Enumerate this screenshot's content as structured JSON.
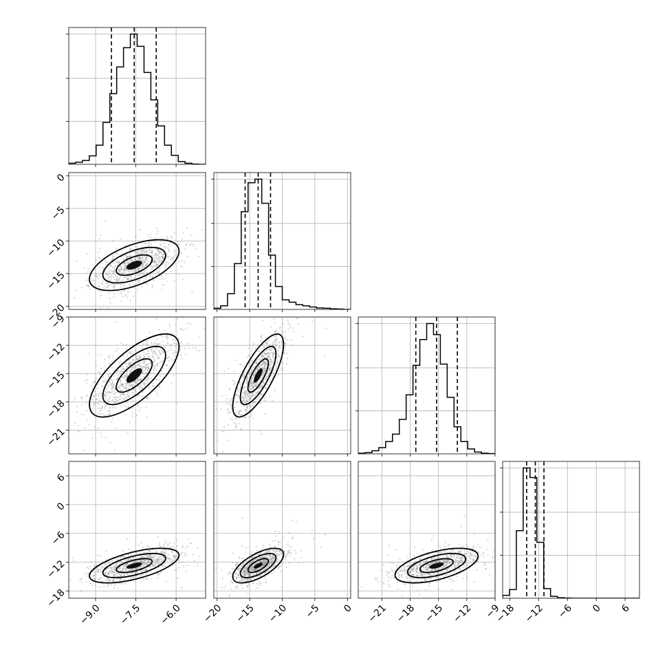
{
  "colors": {
    "background": "#ffffff",
    "ink": "#000000",
    "grid": "#b0b0b0",
    "points": "#888888"
  },
  "chart_data": {
    "type": "corner",
    "n_params": 4,
    "grid": true,
    "axes": [
      {
        "range": [
          -10.0,
          -4.9
        ],
        "ticks": [
          -9.0,
          -7.5,
          -6.0
        ],
        "tick_labels": [
          "−9.0",
          "−7.5",
          "−6.0"
        ]
      },
      {
        "range": [
          -20.5,
          0.5
        ],
        "ticks": [
          -20,
          -15,
          -10,
          -5,
          0
        ],
        "tick_labels": [
          "−20",
          "−15",
          "−10",
          "−5",
          "0"
        ]
      },
      {
        "range": [
          -23.5,
          -9.0
        ],
        "ticks": [
          -21,
          -18,
          -15,
          -12,
          -9
        ],
        "tick_labels": [
          "−21",
          "−18",
          "−15",
          "−12",
          "−9"
        ]
      },
      {
        "range": [
          -19.5,
          9.0
        ],
        "ticks": [
          -18,
          -12,
          -6,
          0,
          6
        ],
        "tick_labels": [
          "−18",
          "−12",
          "−6",
          "0",
          "6"
        ]
      }
    ],
    "histograms": [
      {
        "edges": [
          -10.0,
          -9.745,
          -9.49,
          -9.235,
          -8.98,
          -8.725,
          -8.47,
          -8.215,
          -7.96,
          -7.705,
          -7.45,
          -7.195,
          -6.94,
          -6.685,
          -6.43,
          -6.175,
          -5.92,
          -5.665,
          -5.41,
          -5.155,
          -4.9
        ],
        "counts": [
          0.8,
          1.5,
          2.8,
          6.2,
          14.0,
          30.5,
          51.5,
          71.0,
          85.0,
          95.0,
          86.0,
          67.0,
          47.0,
          28.0,
          14.0,
          6.5,
          2.0,
          0.8,
          0.2,
          0.0
        ],
        "quantiles": [
          -8.41,
          -7.56,
          -6.74
        ]
      },
      {
        "edges": [
          -20.5,
          -19.45,
          -18.4,
          -17.35,
          -16.3,
          -15.25,
          -14.2,
          -13.15,
          -12.1,
          -11.05,
          -10.0,
          -8.95,
          -7.9,
          -6.85,
          -5.8,
          -4.75,
          -3.7,
          -2.65,
          -1.6,
          -0.55,
          0.5
        ],
        "counts": [
          1.0,
          3.0,
          13.0,
          38.0,
          81.0,
          105.0,
          108.0,
          88.0,
          45.0,
          19.0,
          8.0,
          6.0,
          4.0,
          3.0,
          2.0,
          1.2,
          1.0,
          0.5,
          0.3,
          0.0
        ],
        "quantiles": [
          -15.7,
          -13.7,
          -11.8
        ]
      },
      {
        "edges": [
          -23.5,
          -22.775,
          -22.05,
          -21.325,
          -20.6,
          -19.875,
          -19.15,
          -18.425,
          -17.7,
          -16.975,
          -16.25,
          -15.525,
          -14.8,
          -14.075,
          -13.35,
          -12.625,
          -11.9,
          -11.175,
          -10.45,
          -9.725,
          -9.0
        ],
        "counts": [
          0.5,
          1.0,
          2.5,
          5.0,
          10.0,
          16.0,
          28.0,
          48.0,
          72.0,
          93.0,
          106.0,
          97.0,
          73.0,
          46.0,
          22.0,
          10.0,
          4.0,
          1.5,
          0.5,
          0.2
        ],
        "quantiles": [
          -17.4,
          -15.2,
          -13.0
        ]
      },
      {
        "edges": [
          -19.5,
          -18.075,
          -16.65,
          -15.225,
          -13.8,
          -12.375,
          -10.95,
          -9.525,
          -8.1,
          -6.675,
          -5.25,
          -3.825,
          -2.4,
          -0.975,
          0.45,
          1.875,
          3.3,
          4.725,
          6.15,
          7.575,
          9.0
        ],
        "counts": [
          3.0,
          9.0,
          70.0,
          135.0,
          125.0,
          58.0,
          10.0,
          2.0,
          0.5,
          0.2,
          0,
          0,
          0,
          0,
          0,
          0,
          0,
          0,
          0,
          0
        ],
        "quantiles": [
          -14.5,
          -12.7,
          -10.9
        ]
      }
    ],
    "correlations": {
      "1,0": 0.55,
      "2,0": 0.7,
      "2,1": 0.75,
      "3,0": 0.6,
      "3,1": 0.65,
      "3,2": 0.55
    }
  }
}
